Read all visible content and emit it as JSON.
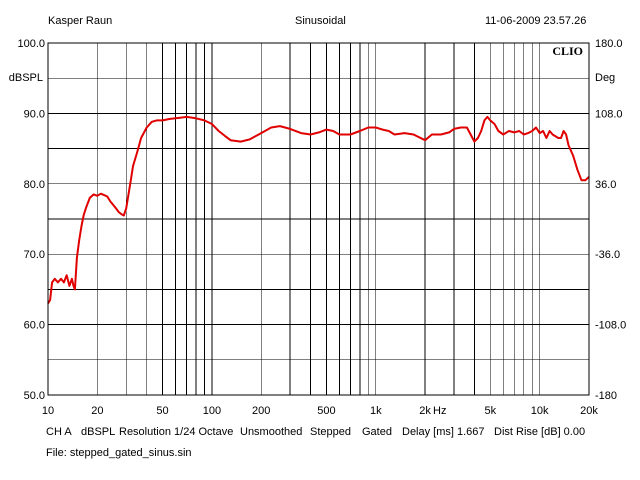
{
  "header": {
    "author": "Kasper Raun",
    "title": "Sinusoidal",
    "timestamp": "11-06-2009 23.57.26"
  },
  "brand": "CLIO",
  "footer": {
    "channel": "CH A",
    "unit": "dBSPL",
    "resolution": "Resolution 1/24 Octave",
    "smoothing": "Unsmoothed",
    "mode": "Stepped",
    "gating": "Gated",
    "delay": "Delay [ms] 1.667",
    "dist_rise": "Dist Rise [dB] 0.00",
    "file": "File: stepped_gated_sinus.sin"
  },
  "chart_data": {
    "type": "line",
    "title": "Sinusoidal",
    "xlabel": "Hz",
    "ylabel": "dBSPL",
    "y2label": "Deg",
    "xscale": "log",
    "xlim": [
      10,
      20000
    ],
    "ylim": [
      50,
      100
    ],
    "y2lim": [
      -180,
      180
    ],
    "grid": true,
    "x_ticks": [
      10,
      20,
      50,
      100,
      200,
      500,
      1000,
      2000,
      5000,
      10000,
      20000
    ],
    "x_tick_labels": [
      "10",
      "20",
      "50",
      "100",
      "200",
      "500",
      "1k",
      "2k",
      "5k",
      "10k",
      "20k"
    ],
    "y_ticks": [
      50,
      60,
      70,
      80,
      90,
      100
    ],
    "y_tick_labels": [
      "50.0",
      "60.0",
      "70.0",
      "80.0",
      "90.0",
      "100.0"
    ],
    "y2_ticks": [
      -180,
      -108,
      -36,
      36,
      108,
      180
    ],
    "y2_tick_labels": [
      "-180",
      "-108.0",
      "-36.0",
      "36.0",
      "108.0",
      "180.0"
    ],
    "series_color": "#e00000",
    "series": [
      {
        "x": [
          10,
          10.3,
          10.6,
          11,
          11.5,
          12,
          12.5,
          13,
          13.5,
          14,
          14.3,
          14.6,
          15,
          15.5,
          16,
          16.5,
          17,
          18,
          19,
          20,
          21,
          22,
          23,
          24,
          25,
          26,
          27,
          28,
          29,
          30,
          31,
          32,
          33,
          35,
          37,
          40,
          43,
          46,
          50,
          55,
          60,
          65,
          70,
          80,
          90,
          100,
          110,
          120,
          130,
          150,
          170,
          200,
          230,
          260,
          300,
          350,
          400,
          450,
          500,
          550,
          600,
          700,
          800,
          900,
          1000,
          1100,
          1200,
          1300,
          1500,
          1700,
          2000,
          2200,
          2500,
          2800,
          3000,
          3300,
          3600,
          4000,
          4200,
          4400,
          4600,
          4800,
          5000,
          5300,
          5600,
          6000,
          6500,
          7000,
          7500,
          8000,
          8500,
          9000,
          9500,
          10000,
          10500,
          11000,
          11500,
          12000,
          13000,
          13500,
          14000,
          14500,
          15000,
          16000,
          17000,
          18000,
          19000,
          20000
        ],
        "y": [
          63,
          63.5,
          66,
          66.5,
          66,
          66.5,
          66,
          67,
          65.5,
          66.5,
          65.5,
          65,
          69.5,
          72,
          74,
          75.5,
          76.5,
          78,
          78.5,
          78.3,
          78.6,
          78.4,
          78.2,
          77.5,
          77,
          76.5,
          76,
          75.7,
          75.5,
          76.5,
          78.5,
          80.5,
          82.5,
          84.5,
          86.5,
          88,
          88.8,
          89,
          89,
          89.2,
          89.3,
          89.4,
          89.5,
          89.3,
          89,
          88.5,
          87.5,
          86.8,
          86.2,
          86,
          86.3,
          87.2,
          88,
          88.2,
          87.8,
          87.2,
          87,
          87.3,
          87.7,
          87.5,
          87,
          87,
          87.5,
          88,
          88,
          87.7,
          87.5,
          87,
          87.2,
          87,
          86.2,
          87,
          87,
          87.3,
          87.8,
          88,
          88,
          86,
          86.5,
          87.5,
          89,
          89.5,
          89,
          88.5,
          87.5,
          87,
          87.5,
          87.3,
          87.5,
          87,
          87.2,
          87.5,
          88,
          87.2,
          87.5,
          86.5,
          87.5,
          87,
          86.5,
          86.5,
          87.5,
          87,
          85.5,
          84,
          82,
          80.5,
          80.5,
          81
        ]
      }
    ]
  }
}
